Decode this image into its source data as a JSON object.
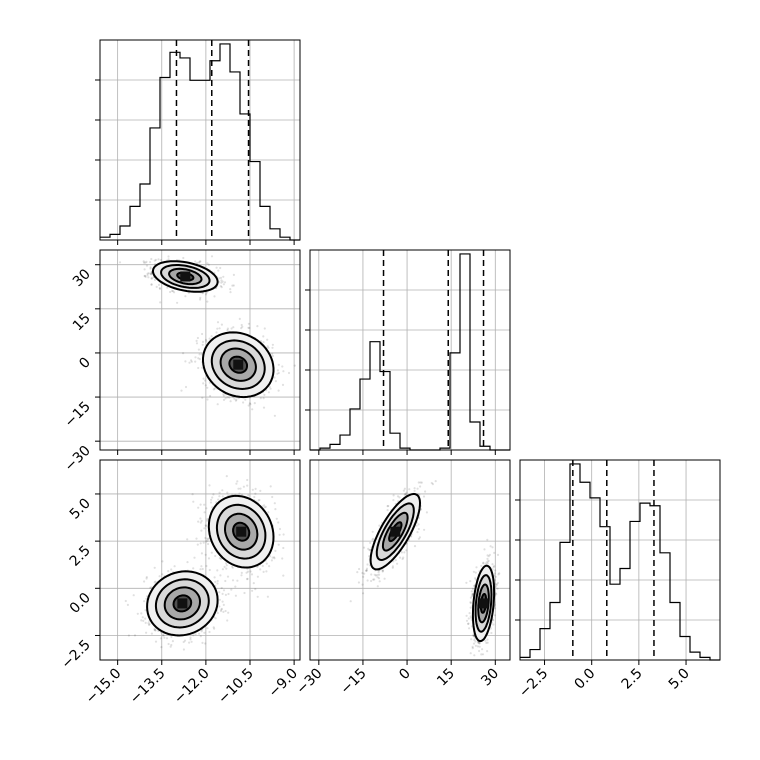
{
  "chart_data": {
    "type": "corner",
    "title": "",
    "parameters": [
      {
        "name": "",
        "range": [
          -15.6,
          -8.8
        ],
        "ticks": [
          -15.0,
          -13.5,
          -12.0,
          -10.5,
          -9.0
        ],
        "tick_labels": [
          "−15.0",
          "−13.5",
          "−12.0",
          "−10.5",
          "−9.0"
        ],
        "quantiles": [
          -13.0,
          -11.8,
          -10.55
        ]
      },
      {
        "name": "",
        "range": [
          -33,
          35
        ],
        "ticks": [
          -30,
          -15,
          0,
          15,
          30
        ],
        "tick_labels": [
          "−30",
          "−15",
          "0",
          "15",
          "30"
        ],
        "quantiles": [
          -8,
          14,
          26
        ]
      },
      {
        "name": "",
        "range": [
          -3.8,
          6.8
        ],
        "ticks": [
          -2.5,
          0.0,
          2.5,
          5.0
        ],
        "tick_labels": [
          "−2.5",
          "0.0",
          "2.5",
          "5.0"
        ],
        "quantiles": [
          -1.0,
          0.8,
          3.3
        ]
      }
    ],
    "histograms": [
      {
        "bin_edges_start": -15.6,
        "bin_width": 0.34,
        "counts": [
          1,
          2,
          5,
          12,
          20,
          40,
          58,
          67,
          65,
          57,
          57,
          64,
          70,
          60,
          45,
          28,
          12,
          4,
          1,
          0
        ]
      },
      {
        "bin_edges_start": -33,
        "bin_width": 3.4,
        "counts": [
          0,
          1,
          3,
          8,
          22,
          38,
          58,
          42,
          9,
          1,
          0,
          0,
          0,
          1,
          52,
          105,
          15,
          2,
          0,
          0
        ]
      },
      {
        "bin_edges_start": -3.8,
        "bin_width": 0.53,
        "counts": [
          1,
          4,
          12,
          22,
          45,
          75,
          68,
          62,
          51,
          29,
          35,
          53,
          60,
          59,
          41,
          22,
          9,
          3,
          1,
          0
        ]
      }
    ],
    "modes_2d": [
      {
        "panel": "p1-vs-p0",
        "center": [
          -12.7,
          26
        ],
        "sigma": [
          0.55,
          2.6
        ],
        "rho": -0.35
      },
      {
        "panel": "p1-vs-p0",
        "center": [
          -10.9,
          -4
        ],
        "sigma": [
          0.6,
          5.5
        ],
        "rho": -0.15
      },
      {
        "panel": "p2-vs-p0",
        "center": [
          -12.8,
          -0.8
        ],
        "sigma": [
          0.6,
          0.85
        ],
        "rho": 0.1
      },
      {
        "panel": "p2-vs-p0",
        "center": [
          -10.8,
          3.0
        ],
        "sigma": [
          0.55,
          0.95
        ],
        "rho": -0.15
      },
      {
        "panel": "p2-vs-p1",
        "center": [
          -4,
          3.0
        ],
        "sigma": [
          4.2,
          1.0
        ],
        "rho": 0.75
      },
      {
        "panel": "p2-vs-p1",
        "center": [
          26,
          -0.8
        ],
        "sigma": [
          1.8,
          1.0
        ],
        "rho": 0.3
      }
    ],
    "contour_levels_sigma": [
      0.5,
      1.0,
      1.5,
      2.0
    ],
    "grid": true
  }
}
